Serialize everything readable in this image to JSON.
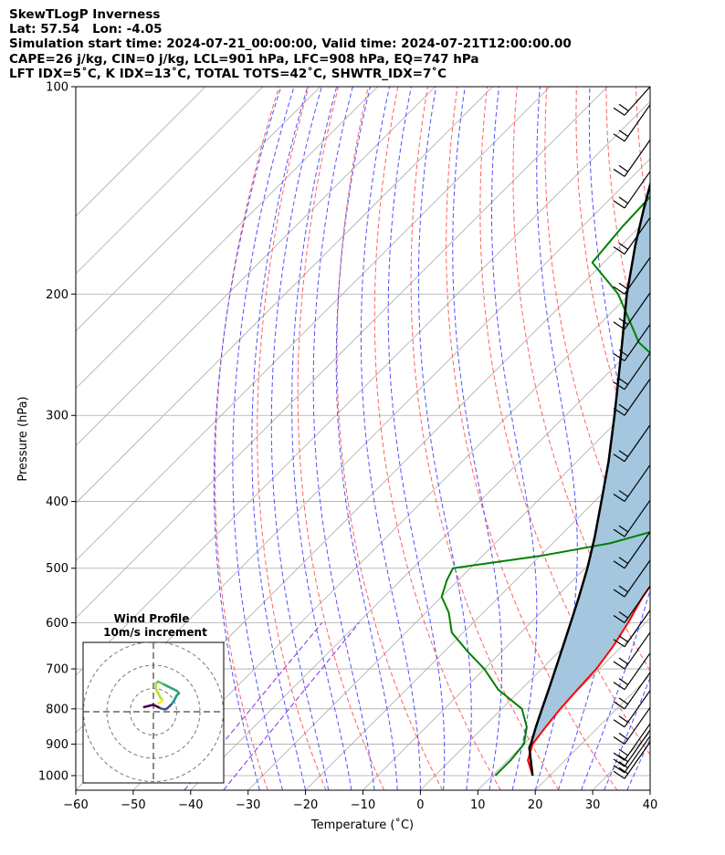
{
  "header": {
    "line1": "SkewTLogP Inverness",
    "line2": "Lat: 57.54   Lon: -4.05",
    "line3": "Simulation start time: 2024-07-21_00:00:00, Valid time: 2024-07-21T12:00:00.00",
    "line4": "CAPE=26 j/kg, CIN=0 j/kg, LCL=901 hPa, LFC=908 hPa, EQ=747 hPa",
    "line5": "LFT IDX=5˚C, K IDX=13˚C, TOTAL TOTS=42˚C, SHWTR_IDX=7˚C"
  },
  "chart_data": {
    "type": "skewt-logp",
    "xlabel": "Temperature (˚C)",
    "ylabel": "Pressure (hPa)",
    "xlim": [
      -60,
      40
    ],
    "ylim": [
      1050,
      100
    ],
    "x_ticks": [
      -60,
      -50,
      -40,
      -30,
      -20,
      -10,
      0,
      10,
      20,
      30,
      40
    ],
    "y_ticks": [
      1000,
      900,
      800,
      700,
      600,
      500,
      400,
      300,
      200,
      100
    ],
    "grid": true,
    "colors": {
      "temperature": "#ff0000",
      "dewpoint": "#008000",
      "parcel": "#000000",
      "cape_fill": "#a4c7df",
      "dry_adiabat": "#ff6060",
      "moist_adiabat": "#5050ff",
      "mixing_ratio": "#8a2be2"
    },
    "series": [
      {
        "name": "temperature",
        "points": [
          [
            1000,
            17.0
          ],
          [
            950,
            13.5
          ],
          [
            900,
            11.5
          ],
          [
            850,
            10.8
          ],
          [
            800,
            10.2
          ],
          [
            750,
            9.8
          ],
          [
            700,
            9.5
          ],
          [
            650,
            8.5
          ],
          [
            600,
            7.0
          ],
          [
            550,
            5.0
          ],
          [
            500,
            3.5
          ],
          [
            450,
            3.3
          ],
          [
            420,
            3.0
          ],
          [
            400,
            2.5
          ],
          [
            370,
            0.5
          ],
          [
            330,
            -3.5
          ],
          [
            300,
            -8.0
          ],
          [
            290,
            -10.0
          ],
          [
            270,
            -12.0
          ],
          [
            250,
            -12.0
          ],
          [
            230,
            -13.5
          ],
          [
            210,
            -13.5
          ],
          [
            200,
            -15.5
          ],
          [
            185,
            -19.0
          ],
          [
            170,
            -25.0
          ],
          [
            150,
            -32.0
          ],
          [
            135,
            -36.0
          ],
          [
            120,
            -39.0
          ],
          [
            110,
            -41.0
          ],
          [
            100,
            -43.0
          ]
        ]
      },
      {
        "name": "dewpoint",
        "points": [
          [
            1000,
            10.5
          ],
          [
            950,
            10.5
          ],
          [
            900,
            10.0
          ],
          [
            850,
            7.5
          ],
          [
            800,
            3.5
          ],
          [
            750,
            -4.0
          ],
          [
            700,
            -10.0
          ],
          [
            660,
            -16.0
          ],
          [
            620,
            -22.0
          ],
          [
            580,
            -26.0
          ],
          [
            550,
            -30.0
          ],
          [
            520,
            -32.0
          ],
          [
            500,
            -33.0
          ],
          [
            480,
            -20.0
          ],
          [
            460,
            -10.0
          ],
          [
            440,
            -4.0
          ],
          [
            410,
            -3.0
          ],
          [
            380,
            -5.0
          ],
          [
            350,
            -9.0
          ],
          [
            320,
            -14.0
          ],
          [
            300,
            -18.0
          ],
          [
            275,
            -22.0
          ],
          [
            265,
            -27.0
          ],
          [
            235,
            -40.0
          ],
          [
            200,
            -52.0
          ],
          [
            180,
            -62.0
          ],
          [
            160,
            -63.0
          ],
          [
            140,
            -63.5
          ],
          [
            110,
            -63.0
          ],
          [
            100,
            -62.5
          ]
        ]
      },
      {
        "name": "parcel",
        "points": [
          [
            1000,
            17.0
          ],
          [
            950,
            14.0
          ],
          [
            910,
            11.5
          ],
          [
            900,
            11.2
          ],
          [
            850,
            9.1
          ],
          [
            800,
            7.0
          ],
          [
            750,
            4.8
          ],
          [
            700,
            2.4
          ],
          [
            650,
            -0.2
          ],
          [
            600,
            -3.0
          ],
          [
            550,
            -6.1
          ],
          [
            500,
            -9.6
          ],
          [
            450,
            -13.8
          ],
          [
            400,
            -18.8
          ],
          [
            350,
            -24.5
          ],
          [
            300,
            -31.5
          ],
          [
            250,
            -40.0
          ],
          [
            200,
            -50.5
          ],
          [
            170,
            -57.5
          ],
          [
            150,
            -62.5
          ],
          [
            125,
            -69.5
          ],
          [
            100,
            -78.0
          ]
        ]
      }
    ],
    "wind_barbs": [
      {
        "p": 1010
      },
      {
        "p": 990
      },
      {
        "p": 970
      },
      {
        "p": 950
      },
      {
        "p": 900
      },
      {
        "p": 850
      },
      {
        "p": 800
      },
      {
        "p": 750
      },
      {
        "p": 700
      },
      {
        "p": 650
      },
      {
        "p": 600
      },
      {
        "p": 550
      },
      {
        "p": 500
      },
      {
        "p": 450
      },
      {
        "p": 400
      },
      {
        "p": 350
      },
      {
        "p": 300
      },
      {
        "p": 275
      },
      {
        "p": 250
      },
      {
        "p": 225
      },
      {
        "p": 200
      },
      {
        "p": 175
      },
      {
        "p": 150
      },
      {
        "p": 135
      },
      {
        "p": 120
      },
      {
        "p": 110
      }
    ],
    "hodograph": {
      "title": "Wind Profile",
      "subtitle": "10m/s increment",
      "rings": [
        10,
        20,
        30
      ],
      "trace": [
        [
          -4,
          2
        ],
        [
          -2,
          2.5
        ],
        [
          0,
          3
        ],
        [
          2,
          2
        ],
        [
          3,
          1.5
        ],
        [
          5,
          1
        ],
        [
          6,
          1.5
        ],
        [
          7,
          2.5
        ],
        [
          8,
          3.5
        ],
        [
          9,
          5
        ],
        [
          10,
          7
        ],
        [
          11,
          8
        ],
        [
          10,
          9
        ],
        [
          8,
          10
        ],
        [
          6,
          11
        ],
        [
          4,
          12
        ],
        [
          3,
          12.5
        ],
        [
          2,
          13
        ],
        [
          1,
          12
        ],
        [
          1,
          10
        ],
        [
          2,
          8
        ],
        [
          3,
          6
        ],
        [
          4,
          5
        ],
        [
          3,
          4
        ],
        [
          2,
          3.5
        ]
      ]
    }
  }
}
